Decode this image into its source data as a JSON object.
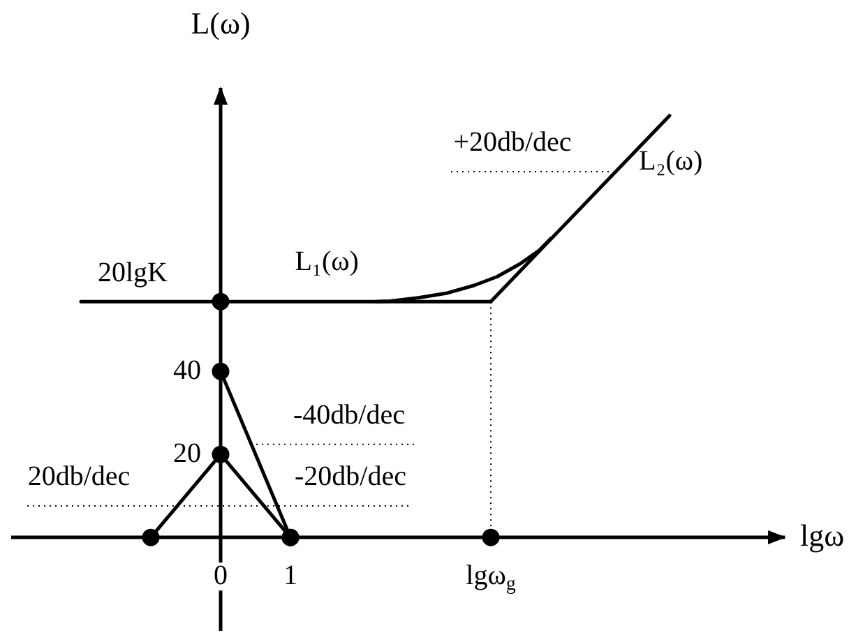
{
  "chart_data": {
    "type": "line",
    "xlabel": "lgω",
    "ylabel": "L(ω)",
    "xlim": [
      -3,
      8.1
    ],
    "ylim": [
      -22.5,
      108.6
    ],
    "xticks": [
      0,
      1,
      {
        "value": 3.87,
        "label": "lgω$_{g}$"
      }
    ],
    "yticks": [
      20,
      40
    ],
    "marker": "none",
    "line_style": "solid",
    "annotations": [
      {
        "text": "20lgK",
        "x": -1.26,
        "y": 56.8
      },
      {
        "text": "+20db/dec",
        "x": 4.18,
        "y": 88.1
      },
      {
        "text": "-40db/dec",
        "x": 1.84,
        "y": 22.4
      },
      {
        "text": "-20db/dec",
        "x": 1.86,
        "y": 7.6
      },
      {
        "text": "20db/dec",
        "x": -2.03,
        "y": 7.6
      }
    ],
    "series": [
      {
        "name": "L₁(ω)",
        "x": [
          -2.0,
          3.87
        ],
        "values": [
          56.8,
          56.8
        ],
        "color": "#000000"
      },
      {
        "name": "L₂(ω)",
        "x": [
          3.87,
          6.43
        ],
        "values": [
          56.8,
          101.6
        ],
        "color": "#000000"
      },
      {
        "x": [
          2.23,
          2.43,
          2.83,
          3.23,
          3.63,
          3.96,
          4.29,
          4.56,
          4.73
        ],
        "values": [
          56.8,
          56.9,
          57.7,
          58.8,
          60.7,
          62.8,
          65.9,
          69.1,
          72.0
        ],
        "color": "#000000"
      },
      {
        "x": [
          -1,
          0,
          1
        ],
        "values": [
          0,
          20,
          0
        ],
        "color": "#000000",
        "marker": "circle"
      },
      {
        "x": [
          0,
          1
        ],
        "values": [
          40,
          0
        ],
        "color": "#000000",
        "marker": "circle"
      },
      {
        "type": "scatter",
        "x": [
          0,
          3.87
        ],
        "values": [
          56.8,
          0
        ],
        "color": "#000000",
        "marker": "circle"
      },
      {
        "x": [
          3.3,
          5.59
        ],
        "values": [
          88.1,
          88.1
        ],
        "color": "#000000",
        "line_style": "dotted"
      },
      {
        "x": [
          0.51,
          2.79
        ],
        "values": [
          22.4,
          22.4
        ],
        "color": "#000000",
        "line_style": "dotted"
      },
      {
        "x": [
          -2.77,
          2.71
        ],
        "values": [
          7.6,
          7.6
        ],
        "color": "#000000",
        "line_style": "dotted"
      },
      {
        "x": [
          3.87,
          3.87
        ],
        "values": [
          0,
          56.8
        ],
        "color": "#000000",
        "line_style": "dotted"
      }
    ]
  }
}
